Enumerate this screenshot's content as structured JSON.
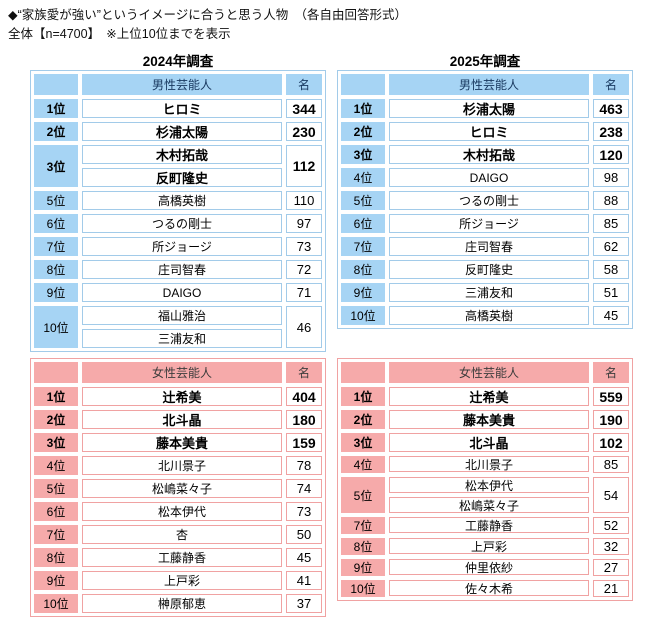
{
  "page_header": {
    "line1": "◆“家族愛が強い”というイメージに合うと思う人物　（各自由回答形式）",
    "line2": "全体【n=4700】　※上位10位までを表示"
  },
  "surveys": {
    "y2024": {
      "title": "2024年調査"
    },
    "y2025": {
      "title": "2025年調査"
    }
  },
  "colors": {
    "blue_fill": "#A6D4F4",
    "blue_border": "#A2CBE9",
    "blue_header_text": "#17375E",
    "pink_fill": "#F6AAAA",
    "pink_border": "#F0A2A2",
    "pink_header_text": "#3C3C3C"
  },
  "tables": {
    "m2024": {
      "survey": "2024年調査",
      "header": {
        "person": "男性芸能人",
        "count": "名"
      },
      "entries": [
        {
          "rank": "1位",
          "names": [
            "ヒロミ"
          ],
          "count": "344",
          "top": true
        },
        {
          "rank": "2位",
          "names": [
            "杉浦太陽"
          ],
          "count": "230",
          "top": true
        },
        {
          "rank": "3位",
          "names": [
            "木村拓哉",
            "反町隆史"
          ],
          "count": "112",
          "top": true
        },
        {
          "rank": "5位",
          "names": [
            "高橋英樹"
          ],
          "count": "110",
          "top": false
        },
        {
          "rank": "6位",
          "names": [
            "つるの剛士"
          ],
          "count": "97",
          "top": false
        },
        {
          "rank": "7位",
          "names": [
            "所ジョージ"
          ],
          "count": "73",
          "top": false
        },
        {
          "rank": "8位",
          "names": [
            "庄司智春"
          ],
          "count": "72",
          "top": false
        },
        {
          "rank": "9位",
          "names": [
            "DAIGO"
          ],
          "count": "71",
          "top": false
        },
        {
          "rank": "10位",
          "names": [
            "福山雅治",
            "三浦友和"
          ],
          "count": "46",
          "top": false
        }
      ]
    },
    "m2025": {
      "survey": "2025年調査",
      "header": {
        "person": "男性芸能人",
        "count": "名"
      },
      "entries": [
        {
          "rank": "1位",
          "names": [
            "杉浦太陽"
          ],
          "count": "463",
          "top": true
        },
        {
          "rank": "2位",
          "names": [
            "ヒロミ"
          ],
          "count": "238",
          "top": true
        },
        {
          "rank": "3位",
          "names": [
            "木村拓哉"
          ],
          "count": "120",
          "top": true
        },
        {
          "rank": "4位",
          "names": [
            "DAIGO"
          ],
          "count": "98",
          "top": false
        },
        {
          "rank": "5位",
          "names": [
            "つるの剛士"
          ],
          "count": "88",
          "top": false
        },
        {
          "rank": "6位",
          "names": [
            "所ジョージ"
          ],
          "count": "85",
          "top": false
        },
        {
          "rank": "7位",
          "names": [
            "庄司智春"
          ],
          "count": "62",
          "top": false
        },
        {
          "rank": "8位",
          "names": [
            "反町隆史"
          ],
          "count": "58",
          "top": false
        },
        {
          "rank": "9位",
          "names": [
            "三浦友和"
          ],
          "count": "51",
          "top": false
        },
        {
          "rank": "10位",
          "names": [
            "高橋英樹"
          ],
          "count": "45",
          "top": false
        }
      ]
    },
    "f2024": {
      "survey": "2024年調査",
      "header": {
        "person": "女性芸能人",
        "count": "名"
      },
      "entries": [
        {
          "rank": "1位",
          "names": [
            "辻希美"
          ],
          "count": "404",
          "top": true
        },
        {
          "rank": "2位",
          "names": [
            "北斗晶"
          ],
          "count": "180",
          "top": true
        },
        {
          "rank": "3位",
          "names": [
            "藤本美貴"
          ],
          "count": "159",
          "top": true
        },
        {
          "rank": "4位",
          "names": [
            "北川景子"
          ],
          "count": "78",
          "top": false
        },
        {
          "rank": "5位",
          "names": [
            "松嶋菜々子"
          ],
          "count": "74",
          "top": false
        },
        {
          "rank": "6位",
          "names": [
            "松本伊代"
          ],
          "count": "73",
          "top": false
        },
        {
          "rank": "7位",
          "names": [
            "杏"
          ],
          "count": "50",
          "top": false
        },
        {
          "rank": "8位",
          "names": [
            "工藤静香"
          ],
          "count": "45",
          "top": false
        },
        {
          "rank": "9位",
          "names": [
            "上戸彩"
          ],
          "count": "41",
          "top": false
        },
        {
          "rank": "10位",
          "names": [
            "榊原郁恵"
          ],
          "count": "37",
          "top": false
        }
      ]
    },
    "f2025": {
      "survey": "2025年調査",
      "header": {
        "person": "女性芸能人",
        "count": "名"
      },
      "entries": [
        {
          "rank": "1位",
          "names": [
            "辻希美"
          ],
          "count": "559",
          "top": true
        },
        {
          "rank": "2位",
          "names": [
            "藤本美貴"
          ],
          "count": "190",
          "top": true
        },
        {
          "rank": "3位",
          "names": [
            "北斗晶"
          ],
          "count": "102",
          "top": true
        },
        {
          "rank": "4位",
          "names": [
            "北川景子"
          ],
          "count": "85",
          "top": false
        },
        {
          "rank": "5位",
          "names": [
            "松本伊代",
            "松嶋菜々子"
          ],
          "count": "54",
          "top": false
        },
        {
          "rank": "7位",
          "names": [
            "工藤静香"
          ],
          "count": "52",
          "top": false
        },
        {
          "rank": "8位",
          "names": [
            "上戸彩"
          ],
          "count": "32",
          "top": false
        },
        {
          "rank": "9位",
          "names": [
            "仲里依紗"
          ],
          "count": "27",
          "top": false
        },
        {
          "rank": "10位",
          "names": [
            "佐々木希"
          ],
          "count": "21",
          "top": false
        }
      ]
    }
  }
}
